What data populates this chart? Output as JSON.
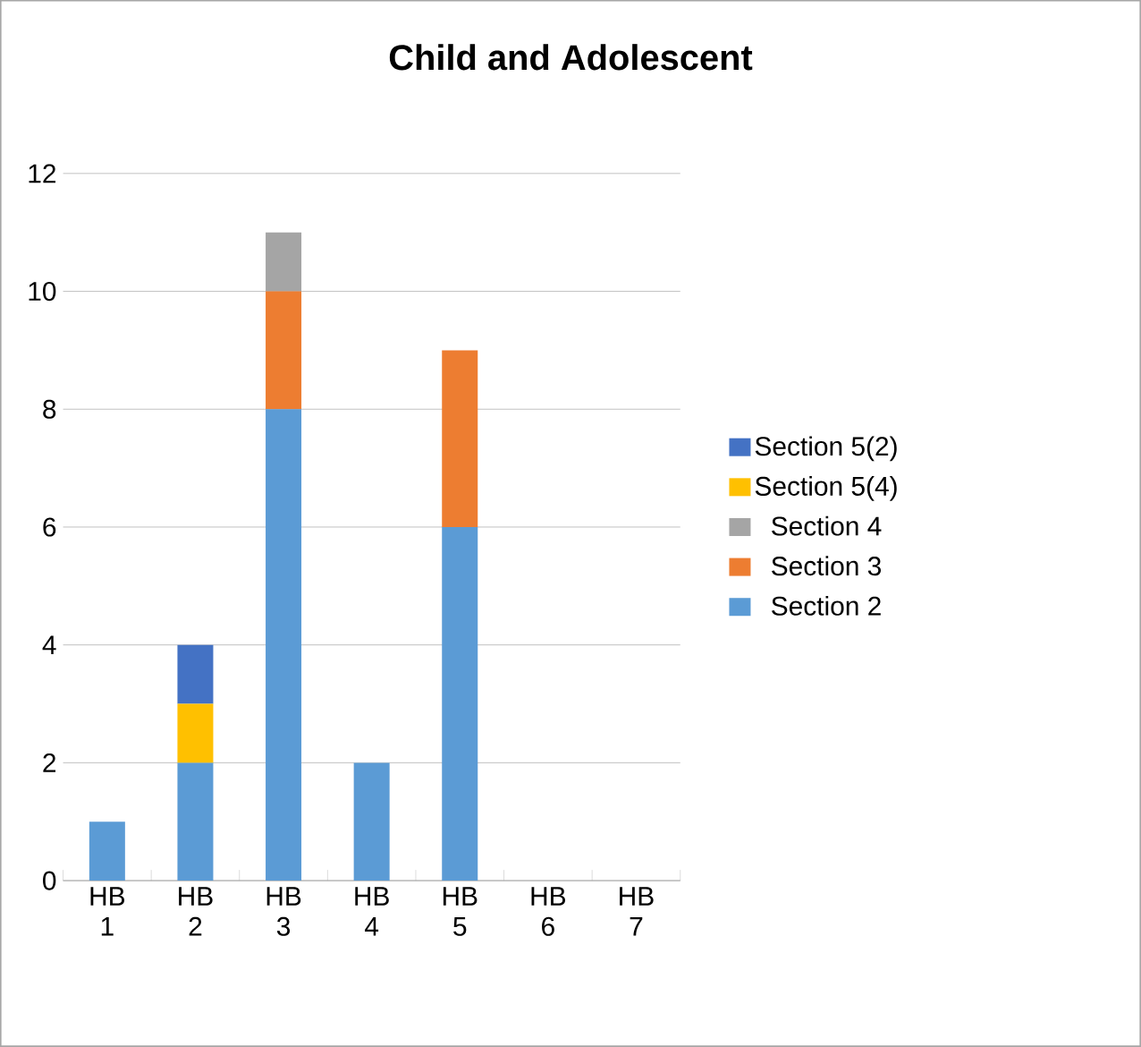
{
  "chart_data": {
    "type": "bar",
    "title": "Child and Adolescent",
    "categories": [
      "HB 1",
      "HB 2",
      "HB 3",
      "HB 4",
      "HB 5",
      "HB 6",
      "HB 7"
    ],
    "stacked": true,
    "series": [
      {
        "name": "Section 2",
        "color": "#5b9bd5",
        "values": [
          1,
          2,
          8,
          2,
          6,
          0,
          0
        ]
      },
      {
        "name": "Section 3",
        "color": "#ed7d31",
        "values": [
          0,
          0,
          2,
          0,
          3,
          0,
          0
        ]
      },
      {
        "name": "Section 4",
        "color": "#a5a5a5",
        "values": [
          0,
          0,
          1,
          0,
          0,
          0,
          0
        ]
      },
      {
        "name": "Section 5(4)",
        "color": "#ffc000",
        "values": [
          0,
          1,
          0,
          0,
          0,
          0,
          0
        ]
      },
      {
        "name": "Section 5(2)",
        "color": "#4472c4",
        "values": [
          0,
          1,
          0,
          0,
          0,
          0,
          0
        ]
      }
    ],
    "ylim": [
      0,
      12
    ],
    "yticks": [
      0,
      2,
      4,
      6,
      8,
      10,
      12
    ],
    "grid": "y",
    "legend": "right"
  }
}
